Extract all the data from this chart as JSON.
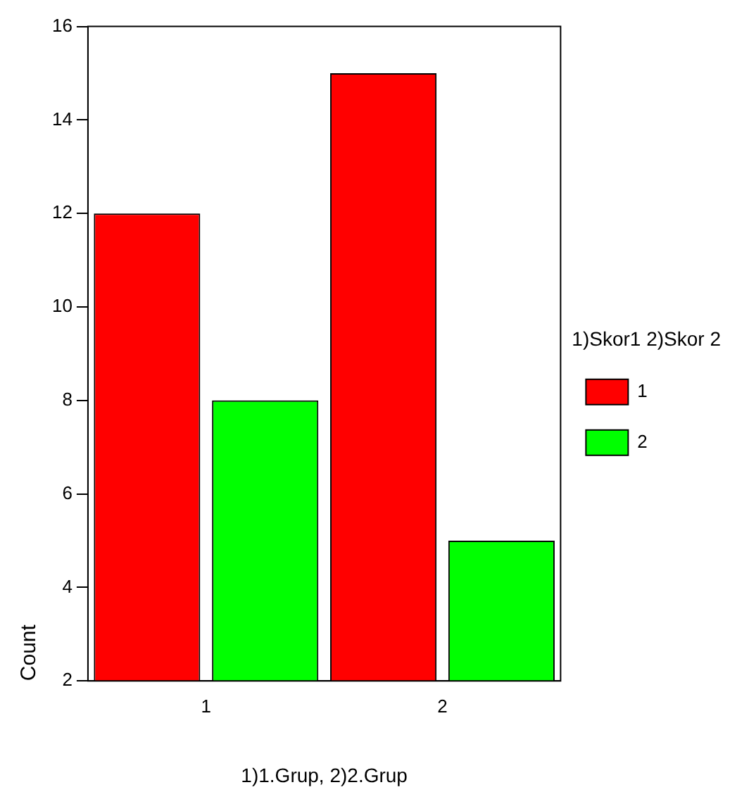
{
  "chart_data": {
    "type": "bar",
    "categories": [
      "1",
      "2"
    ],
    "series": [
      {
        "name": "1",
        "color": "#ff0000",
        "values": [
          12,
          15
        ]
      },
      {
        "name": "2",
        "color": "#00ff00",
        "values": [
          8,
          5
        ]
      }
    ],
    "ylim": [
      2,
      16
    ],
    "yticks": [
      2,
      4,
      6,
      8,
      10,
      12,
      14,
      16
    ],
    "xlabel": "1)1.Grup, 2)2.Grup",
    "ylabel": "Count",
    "legend_title": "1)Skor1 2)Skor 2",
    "legend": "right",
    "grid": false
  }
}
